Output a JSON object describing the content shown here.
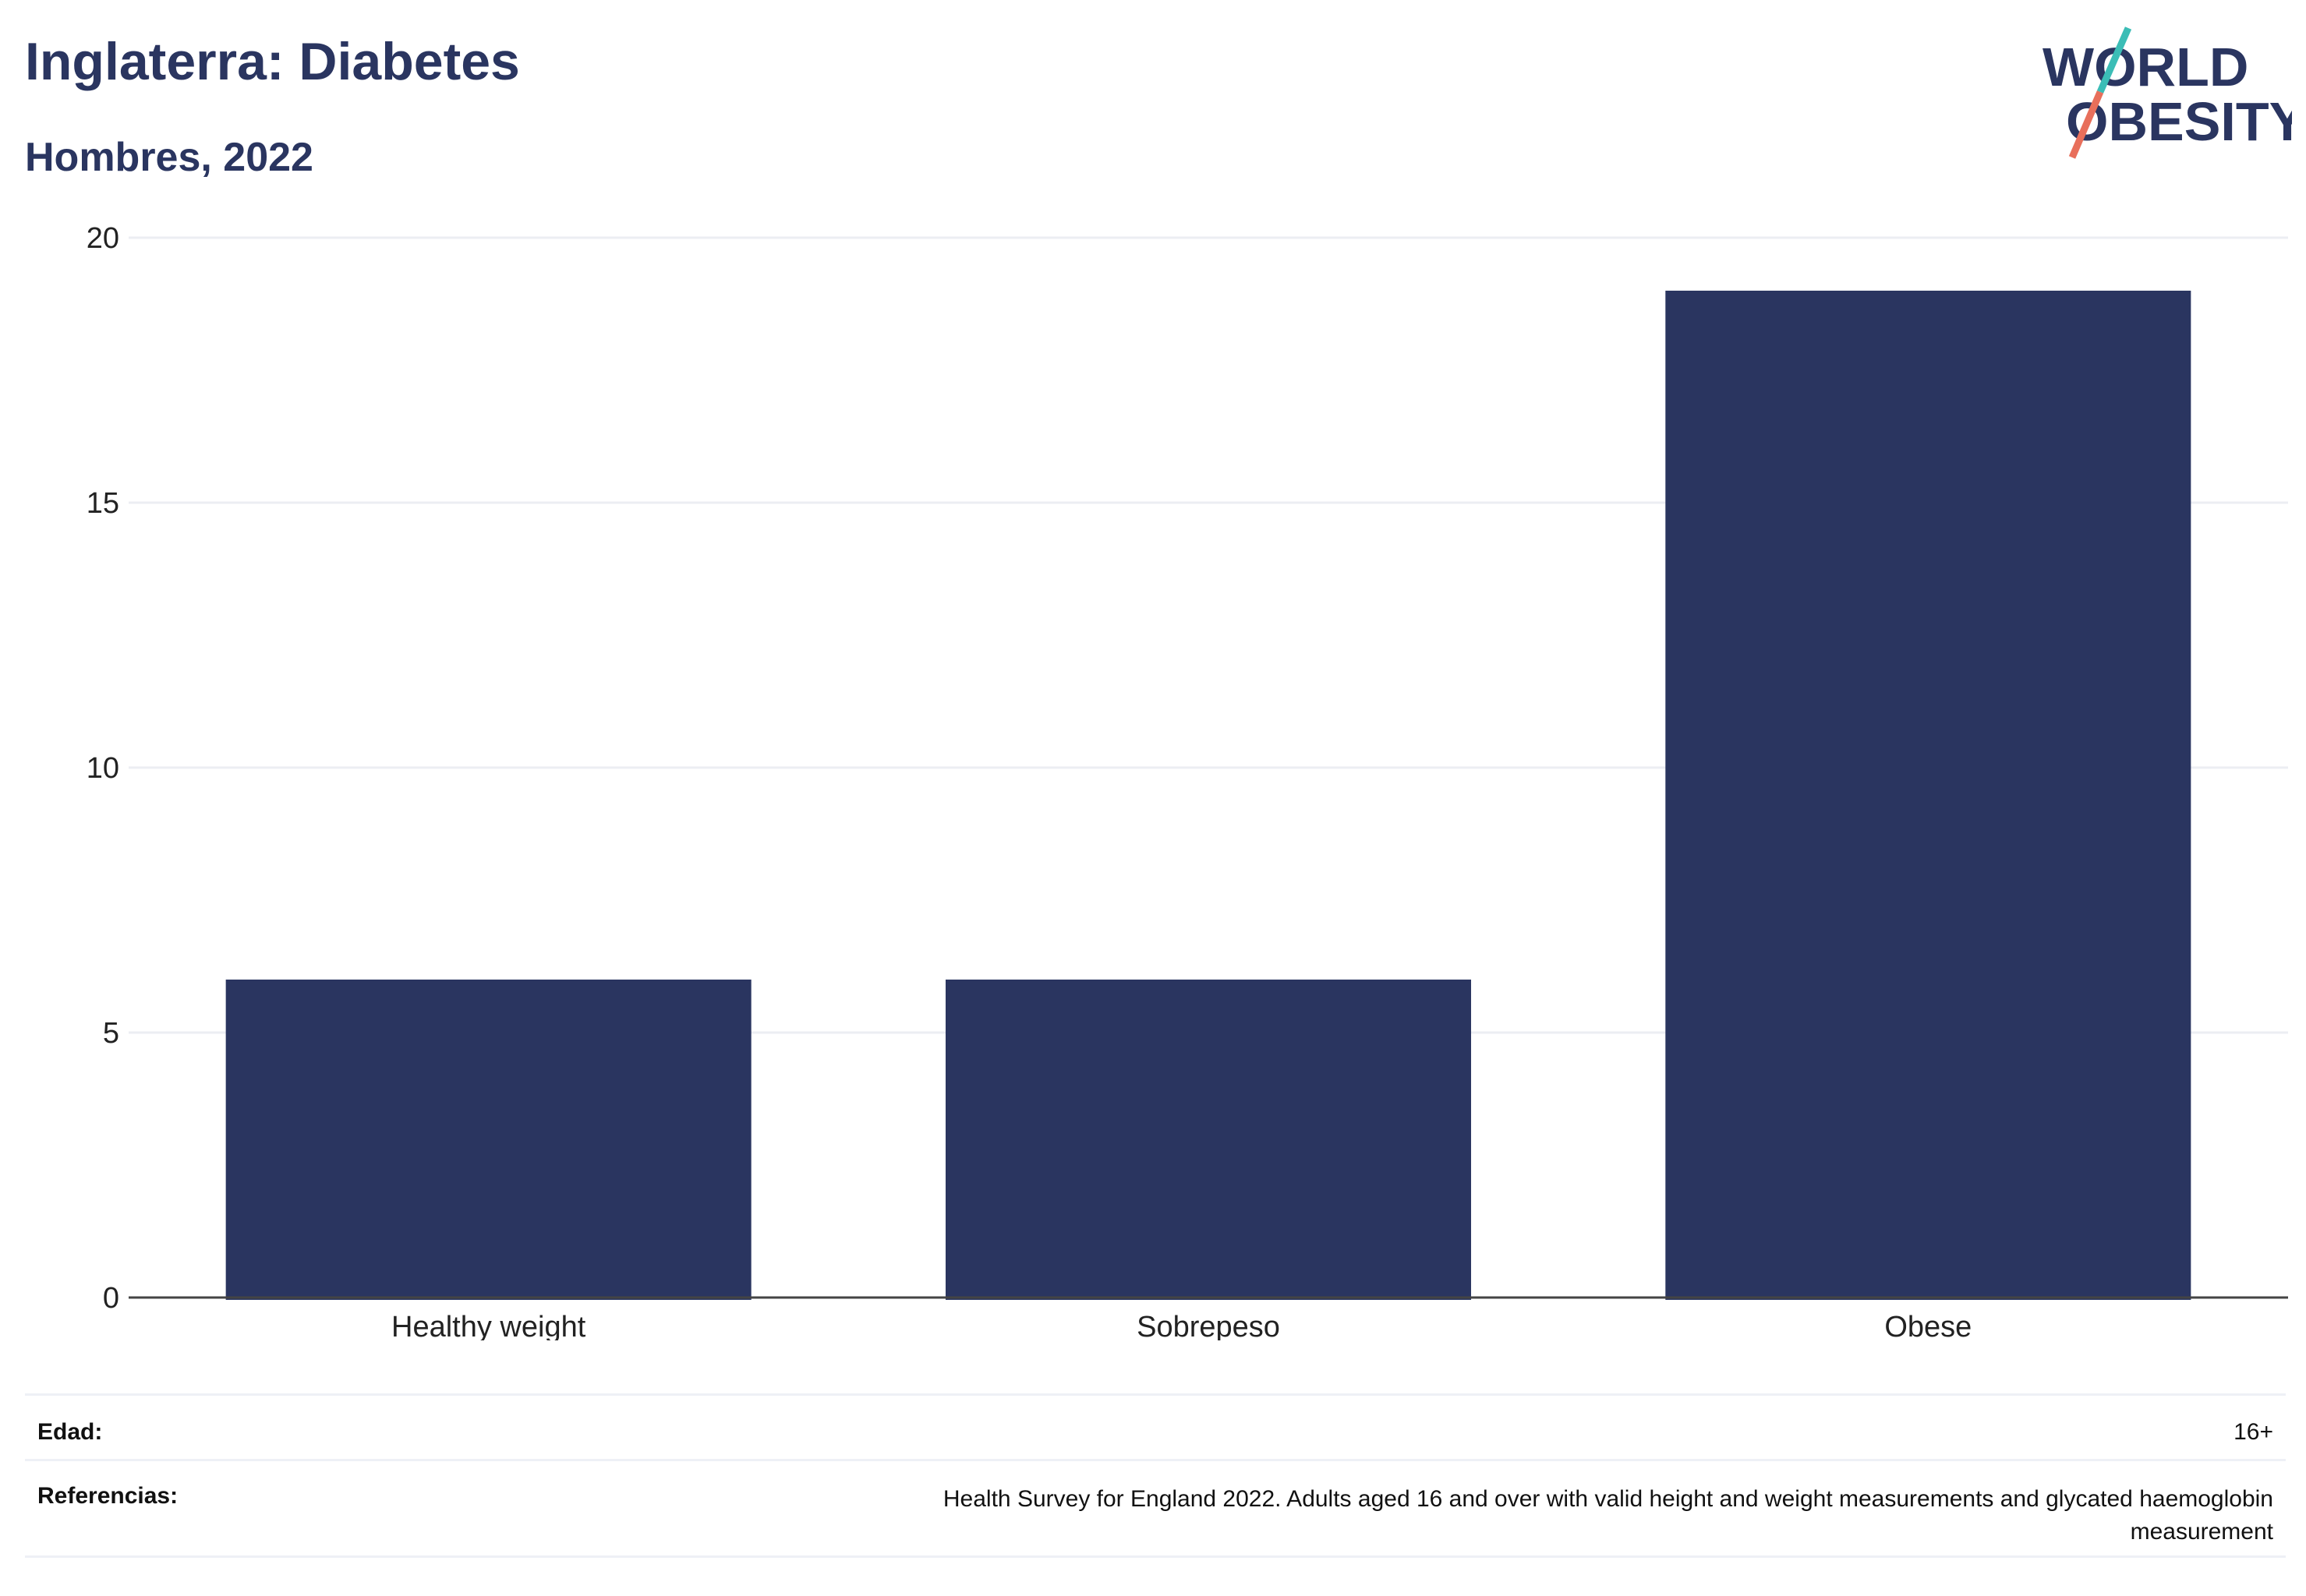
{
  "header": {
    "title": "Inglaterra: Diabetes",
    "subtitle": "Hombres, 2022"
  },
  "logo": {
    "line1": "WORLD",
    "line2": "OBESITY",
    "colors": {
      "text": "#2a3560",
      "slash_top": "#3bbdb6",
      "slash_bottom": "#e86f5b"
    }
  },
  "chart_data": {
    "type": "bar",
    "categories": [
      "Healthy weight",
      "Sobrepeso",
      "Obese"
    ],
    "values": [
      6,
      6,
      19
    ],
    "ylim": [
      0,
      20
    ],
    "yticks": [
      0,
      5,
      10,
      15,
      20
    ],
    "grid": true,
    "bar_color": "#2a3560",
    "title": "",
    "xlabel": "",
    "ylabel": ""
  },
  "footer": {
    "age_label": "Edad:",
    "age_value": "16+",
    "refs_label": "Referencias:",
    "refs_line1": "Health Survey for England 2022. Adults aged 16 and over with valid height and weight measurements and glycated haemoglobin",
    "refs_line2": "measurement"
  }
}
